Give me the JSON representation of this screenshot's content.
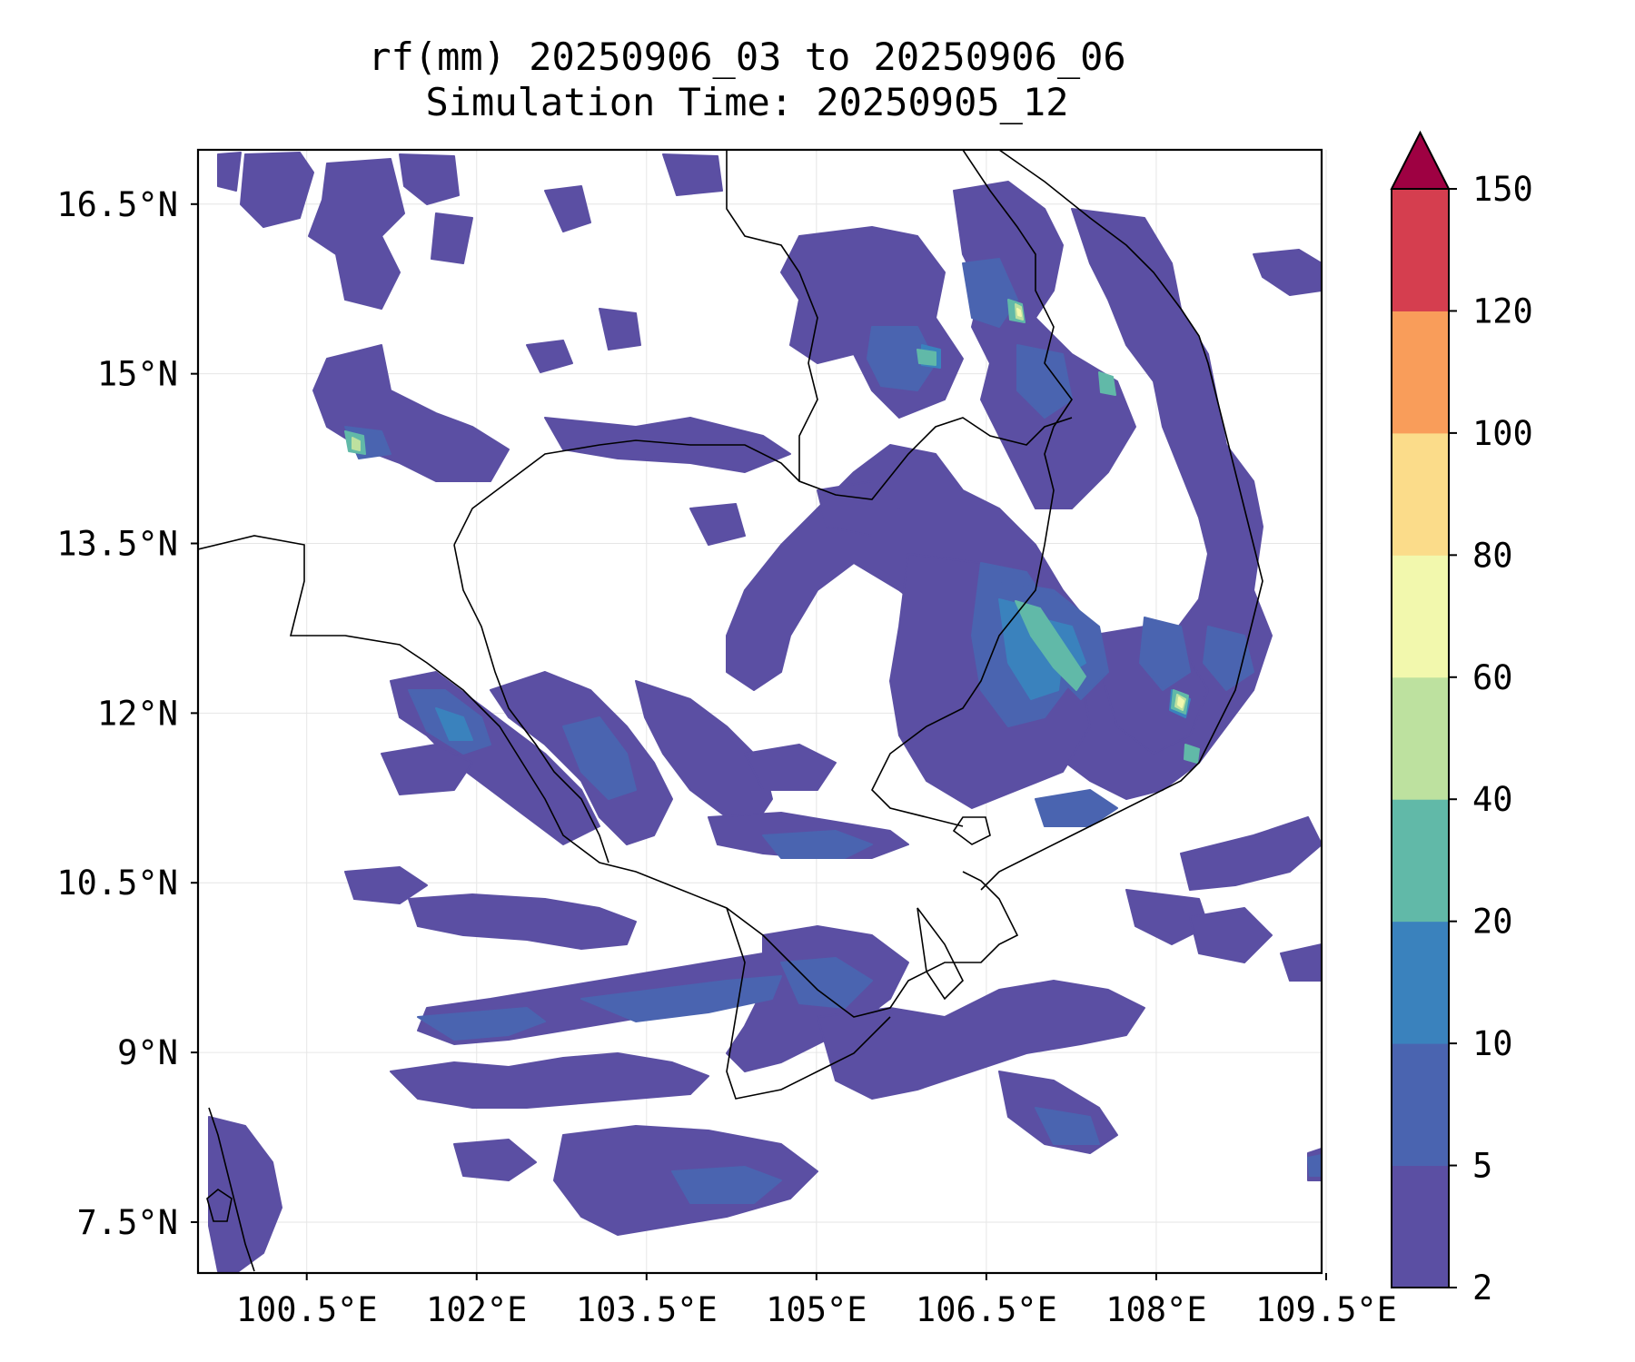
{
  "title": {
    "line1": "rf(mm) 20250906_03 to 20250906_06",
    "line2": "Simulation Time: 20250905_12"
  },
  "axes": {
    "lon_ticks": [
      "100.5°E",
      "102°E",
      "103.5°E",
      "105°E",
      "106.5°E",
      "108°E",
      "109.5°E"
    ],
    "lat_ticks": [
      "16.5°N",
      "15°N",
      "13.5°N",
      "12°N",
      "10.5°N",
      "9°N",
      "7.5°N"
    ],
    "lon_values": [
      100.5,
      102,
      103.5,
      105,
      106.5,
      108,
      109.5
    ],
    "lat_values": [
      16.5,
      15,
      13.5,
      12,
      10.5,
      9,
      7.5
    ],
    "lon_range": [
      99.54,
      109.46
    ],
    "lat_range": [
      7.05,
      16.98
    ],
    "gridlines": true
  },
  "colorbar": {
    "levels": [
      "2",
      "5",
      "10",
      "20",
      "40",
      "60",
      "80",
      "100",
      "120",
      "150"
    ],
    "colors": [
      "#5b4fa3",
      "#4a64b0",
      "#3a82bd",
      "#61b9a8",
      "#bde19f",
      "#f2f8ad",
      "#fbdc8a",
      "#f99d5a",
      "#d53e4f"
    ],
    "extend_color": "#9e0142",
    "extend": "max"
  },
  "rain_colors": {
    "light": "#5b4fa3",
    "moderate": "#4a64b0",
    "heavy": "#3a82bd",
    "very_heavy": "#61b9a8",
    "intense": "#bde19f",
    "extreme": "#f2f8ad"
  }
}
